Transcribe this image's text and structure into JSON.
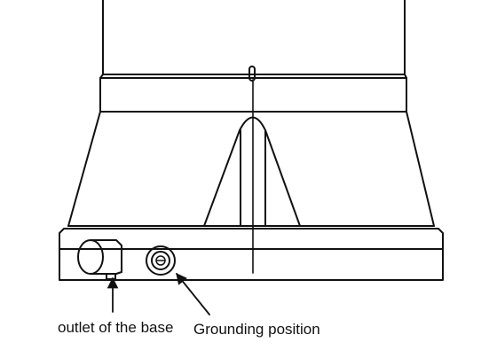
{
  "labels": {
    "outlet": "outlet of the base",
    "grounding": "Grounding position"
  },
  "colors": {
    "line": "#111111",
    "background": "#ffffff"
  },
  "parts": [
    "upper-column",
    "collar-band",
    "tapered-housing",
    "center-rib",
    "base-plate",
    "base-outlet",
    "grounding-terminal",
    "outlet-pointer-arrow",
    "grounding-pointer-arrow"
  ]
}
